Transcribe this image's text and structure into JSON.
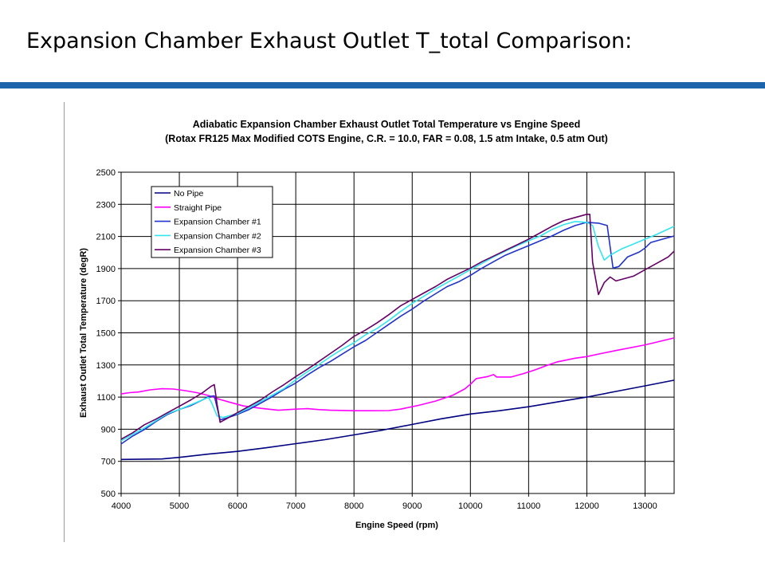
{
  "slide": {
    "title": "Expansion Chamber Exhaust Outlet T_total Comparison:",
    "rule_color": "#1e64ac"
  },
  "chart_data": {
    "type": "line",
    "title": "Adiabatic Expansion Chamber Exhaust Outlet Total Temperature vs Engine Speed",
    "subtitle": "(Rotax FR125 Max Modified COTS Engine, C.R. = 10.0, FAR = 0.08, 1.5 atm Intake, 0.5 atm Out)",
    "xlabel": "Engine Speed (rpm)",
    "ylabel": "Exhaust Outlet Total Temperature (degR)",
    "xlim": [
      4000,
      13500
    ],
    "ylim": [
      500,
      2500
    ],
    "xticks": [
      4000,
      5000,
      6000,
      7000,
      8000,
      9000,
      10000,
      11000,
      12000,
      13000
    ],
    "yticks": [
      500,
      700,
      900,
      1100,
      1300,
      1500,
      1700,
      1900,
      2100,
      2300,
      2500
    ],
    "grid": true,
    "legend_position": "top-left",
    "series": [
      {
        "name": "No Pipe",
        "color": "#000080",
        "points": [
          [
            4000,
            712
          ],
          [
            4700,
            715
          ],
          [
            5000,
            725
          ],
          [
            5500,
            745
          ],
          [
            6000,
            762
          ],
          [
            6500,
            785
          ],
          [
            7000,
            810
          ],
          [
            7500,
            835
          ],
          [
            8000,
            865
          ],
          [
            8500,
            895
          ],
          [
            9000,
            930
          ],
          [
            9500,
            965
          ],
          [
            10000,
            995
          ],
          [
            10500,
            1015
          ],
          [
            11000,
            1040
          ],
          [
            11500,
            1070
          ],
          [
            12000,
            1100
          ],
          [
            12500,
            1135
          ],
          [
            13000,
            1170
          ],
          [
            13500,
            1205
          ]
        ]
      },
      {
        "name": "Straight Pipe",
        "color": "#ff00ff",
        "points": [
          [
            4000,
            1120
          ],
          [
            4150,
            1128
          ],
          [
            4300,
            1132
          ],
          [
            4500,
            1145
          ],
          [
            4700,
            1152
          ],
          [
            4900,
            1150
          ],
          [
            5100,
            1140
          ],
          [
            5300,
            1128
          ],
          [
            5500,
            1110
          ],
          [
            5700,
            1085
          ],
          [
            5900,
            1065
          ],
          [
            6100,
            1045
          ],
          [
            6400,
            1030
          ],
          [
            6700,
            1018
          ],
          [
            7000,
            1025
          ],
          [
            7200,
            1028
          ],
          [
            7400,
            1022
          ],
          [
            7600,
            1018
          ],
          [
            8000,
            1015
          ],
          [
            8300,
            1015
          ],
          [
            8600,
            1016
          ],
          [
            8800,
            1025
          ],
          [
            9100,
            1048
          ],
          [
            9400,
            1075
          ],
          [
            9700,
            1112
          ],
          [
            9900,
            1150
          ],
          [
            10000,
            1180
          ],
          [
            10100,
            1215
          ],
          [
            10300,
            1228
          ],
          [
            10400,
            1240
          ],
          [
            10450,
            1225
          ],
          [
            10700,
            1225
          ],
          [
            10900,
            1245
          ],
          [
            11100,
            1268
          ],
          [
            11300,
            1295
          ],
          [
            11500,
            1320
          ],
          [
            11800,
            1342
          ],
          [
            12000,
            1352
          ],
          [
            12200,
            1368
          ],
          [
            12500,
            1390
          ],
          [
            13000,
            1425
          ],
          [
            13500,
            1468
          ]
        ]
      },
      {
        "name": "Expansion Chamber #1",
        "color": "#2233cc",
        "points": [
          [
            4000,
            808
          ],
          [
            4200,
            858
          ],
          [
            4400,
            898
          ],
          [
            4600,
            948
          ],
          [
            4800,
            993
          ],
          [
            5000,
            1023
          ],
          [
            5200,
            1048
          ],
          [
            5400,
            1083
          ],
          [
            5500,
            1103
          ],
          [
            5600,
            1108
          ],
          [
            5700,
            958
          ],
          [
            5800,
            968
          ],
          [
            6000,
            993
          ],
          [
            6200,
            1023
          ],
          [
            6400,
            1063
          ],
          [
            6600,
            1103
          ],
          [
            6800,
            1148
          ],
          [
            7000,
            1188
          ],
          [
            7200,
            1238
          ],
          [
            7400,
            1283
          ],
          [
            7600,
            1323
          ],
          [
            7800,
            1368
          ],
          [
            8000,
            1413
          ],
          [
            8200,
            1453
          ],
          [
            8400,
            1503
          ],
          [
            8600,
            1553
          ],
          [
            8800,
            1603
          ],
          [
            9000,
            1648
          ],
          [
            9200,
            1698
          ],
          [
            9400,
            1743
          ],
          [
            9600,
            1788
          ],
          [
            9800,
            1818
          ],
          [
            10000,
            1858
          ],
          [
            10200,
            1903
          ],
          [
            10400,
            1943
          ],
          [
            10600,
            1983
          ],
          [
            10800,
            2013
          ],
          [
            11000,
            2043
          ],
          [
            11200,
            2073
          ],
          [
            11400,
            2103
          ],
          [
            11600,
            2138
          ],
          [
            11800,
            2168
          ],
          [
            12000,
            2188
          ],
          [
            12200,
            2183
          ],
          [
            12350,
            2168
          ],
          [
            12450,
            1903
          ],
          [
            12550,
            1913
          ],
          [
            12700,
            1973
          ],
          [
            12900,
            2003
          ],
          [
            13000,
            2028
          ],
          [
            13100,
            2063
          ],
          [
            13300,
            2083
          ],
          [
            13500,
            2103
          ]
        ]
      },
      {
        "name": "Expansion Chamber #2",
        "color": "#33e5ee",
        "points": [
          [
            4000,
            828
          ],
          [
            4200,
            868
          ],
          [
            4400,
            908
          ],
          [
            4600,
            953
          ],
          [
            4800,
            998
          ],
          [
            5000,
            1023
          ],
          [
            5200,
            1053
          ],
          [
            5400,
            1083
          ],
          [
            5500,
            1098
          ],
          [
            5550,
            1068
          ],
          [
            5650,
            983
          ],
          [
            5750,
            973
          ],
          [
            6000,
            998
          ],
          [
            6200,
            1033
          ],
          [
            6400,
            1073
          ],
          [
            6600,
            1113
          ],
          [
            6800,
            1153
          ],
          [
            7000,
            1208
          ],
          [
            7200,
            1258
          ],
          [
            7400,
            1303
          ],
          [
            7600,
            1353
          ],
          [
            7800,
            1398
          ],
          [
            8000,
            1438
          ],
          [
            8200,
            1488
          ],
          [
            8400,
            1528
          ],
          [
            8600,
            1578
          ],
          [
            8800,
            1633
          ],
          [
            9000,
            1683
          ],
          [
            9200,
            1728
          ],
          [
            9400,
            1773
          ],
          [
            9600,
            1813
          ],
          [
            9800,
            1853
          ],
          [
            10000,
            1893
          ],
          [
            10200,
            1933
          ],
          [
            10400,
            1973
          ],
          [
            10600,
            2008
          ],
          [
            10800,
            2043
          ],
          [
            11000,
            2073
          ],
          [
            11200,
            2103
          ],
          [
            11400,
            2143
          ],
          [
            11600,
            2173
          ],
          [
            11800,
            2193
          ],
          [
            12000,
            2188
          ],
          [
            12100,
            2168
          ],
          [
            12200,
            2038
          ],
          [
            12300,
            1953
          ],
          [
            12400,
            1983
          ],
          [
            12600,
            2023
          ],
          [
            12800,
            2053
          ],
          [
            13000,
            2083
          ],
          [
            13200,
            2113
          ],
          [
            13500,
            2163
          ]
        ]
      },
      {
        "name": "Expansion Chamber #3",
        "color": "#660066",
        "points": [
          [
            4000,
            838
          ],
          [
            4200,
            878
          ],
          [
            4400,
            928
          ],
          [
            4600,
            963
          ],
          [
            4800,
            1003
          ],
          [
            5000,
            1043
          ],
          [
            5200,
            1083
          ],
          [
            5400,
            1128
          ],
          [
            5550,
            1168
          ],
          [
            5600,
            1178
          ],
          [
            5650,
            1053
          ],
          [
            5700,
            943
          ],
          [
            5800,
            963
          ],
          [
            6000,
            1003
          ],
          [
            6200,
            1043
          ],
          [
            6400,
            1083
          ],
          [
            6600,
            1133
          ],
          [
            6800,
            1178
          ],
          [
            7000,
            1228
          ],
          [
            7200,
            1273
          ],
          [
            7400,
            1323
          ],
          [
            7600,
            1373
          ],
          [
            7800,
            1423
          ],
          [
            8000,
            1478
          ],
          [
            8200,
            1518
          ],
          [
            8400,
            1563
          ],
          [
            8600,
            1613
          ],
          [
            8800,
            1668
          ],
          [
            9000,
            1708
          ],
          [
            9200,
            1748
          ],
          [
            9400,
            1788
          ],
          [
            9600,
            1833
          ],
          [
            9800,
            1868
          ],
          [
            10000,
            1903
          ],
          [
            10200,
            1943
          ],
          [
            10400,
            1978
          ],
          [
            10600,
            2013
          ],
          [
            10800,
            2048
          ],
          [
            11000,
            2083
          ],
          [
            11200,
            2123
          ],
          [
            11400,
            2163
          ],
          [
            11600,
            2198
          ],
          [
            11800,
            2218
          ],
          [
            12000,
            2238
          ],
          [
            12050,
            2238
          ],
          [
            12100,
            1938
          ],
          [
            12200,
            1738
          ],
          [
            12300,
            1813
          ],
          [
            12400,
            1848
          ],
          [
            12500,
            1823
          ],
          [
            12600,
            1833
          ],
          [
            12800,
            1853
          ],
          [
            13000,
            1893
          ],
          [
            13200,
            1933
          ],
          [
            13400,
            1973
          ],
          [
            13500,
            2008
          ]
        ]
      }
    ]
  }
}
